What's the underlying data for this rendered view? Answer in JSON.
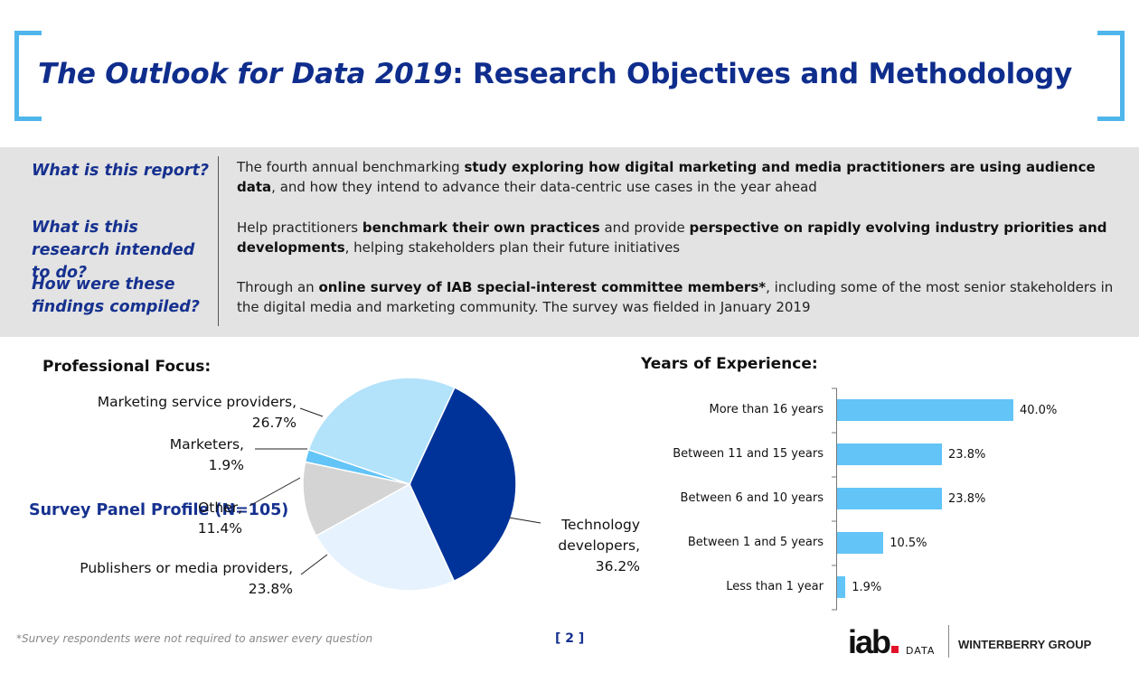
{
  "header": {
    "title_italic": "The Outlook for Data 2019",
    "title_rest": ": Research Objectives and Methodology"
  },
  "overview": [
    {
      "question": "What is this report?",
      "answer": [
        {
          "t": "The fourth annual benchmarking ",
          "b": false
        },
        {
          "t": "study exploring how digital marketing and media practitioners are using audience data",
          "b": true
        },
        {
          "t": ", and how they intend to advance their data-centric use cases in the year ahead",
          "b": false
        }
      ]
    },
    {
      "question": "What is this research intended to do?",
      "answer": [
        {
          "t": "Help practitioners ",
          "b": false
        },
        {
          "t": "benchmark their own practices",
          "b": true
        },
        {
          "t": " and provide ",
          "b": false
        },
        {
          "t": "perspective on rapidly evolving industry priorities and developments",
          "b": true
        },
        {
          "t": ", helping stakeholders plan their future initiatives",
          "b": false
        }
      ]
    },
    {
      "question": "How were these findings compiled?",
      "answer": [
        {
          "t": "Through an ",
          "b": false
        },
        {
          "t": "online survey of IAB special-interest committee members*",
          "b": true
        },
        {
          "t": ", including some of the most senior stakeholders in the digital media and marketing community. The survey was fielded in January 2019",
          "b": false
        }
      ]
    }
  ],
  "panel_label": "Survey Panel Profile (N=105)",
  "chart_data": [
    {
      "type": "pie",
      "title": "Professional Focus:",
      "slices": [
        {
          "label": "Technology developers,",
          "pct_label": "36.2%",
          "value": 36.2,
          "color": "#003399"
        },
        {
          "label": "Publishers or media providers,",
          "pct_label": "23.8%",
          "value": 23.8,
          "color": "#e6f2fd"
        },
        {
          "label": "Other,",
          "pct_label": "11.4%",
          "value": 11.4,
          "color": "#d4d4d4"
        },
        {
          "label": "Marketers,",
          "pct_label": "1.9%",
          "value": 1.9,
          "color": "#62c4f7"
        },
        {
          "label": "Marketing service providers,",
          "pct_label": "26.7%",
          "value": 26.7,
          "color": "#b3e2fb"
        }
      ]
    },
    {
      "type": "bar",
      "orientation": "horizontal",
      "title": "Years of Experience:",
      "categories": [
        "More than 16 years",
        "Between 11 and 15 years",
        "Between 6 and 10 years",
        "Between 1 and 5 years",
        "Less than 1 year"
      ],
      "values": [
        40.0,
        23.8,
        23.8,
        10.5,
        1.9
      ],
      "value_labels": [
        "40.0%",
        "23.8%",
        "23.8%",
        "10.5%",
        "1.9%"
      ],
      "bar_color": "#62c4f7",
      "xlim": [
        0,
        40
      ]
    }
  ],
  "footnote": "*Survey respondents were not required to answer every question",
  "page_number": "[ 2 ]",
  "logos": {
    "iab": "iab",
    "iab_sub": "DATA",
    "partner": "WINTERBERRY GROUP"
  }
}
